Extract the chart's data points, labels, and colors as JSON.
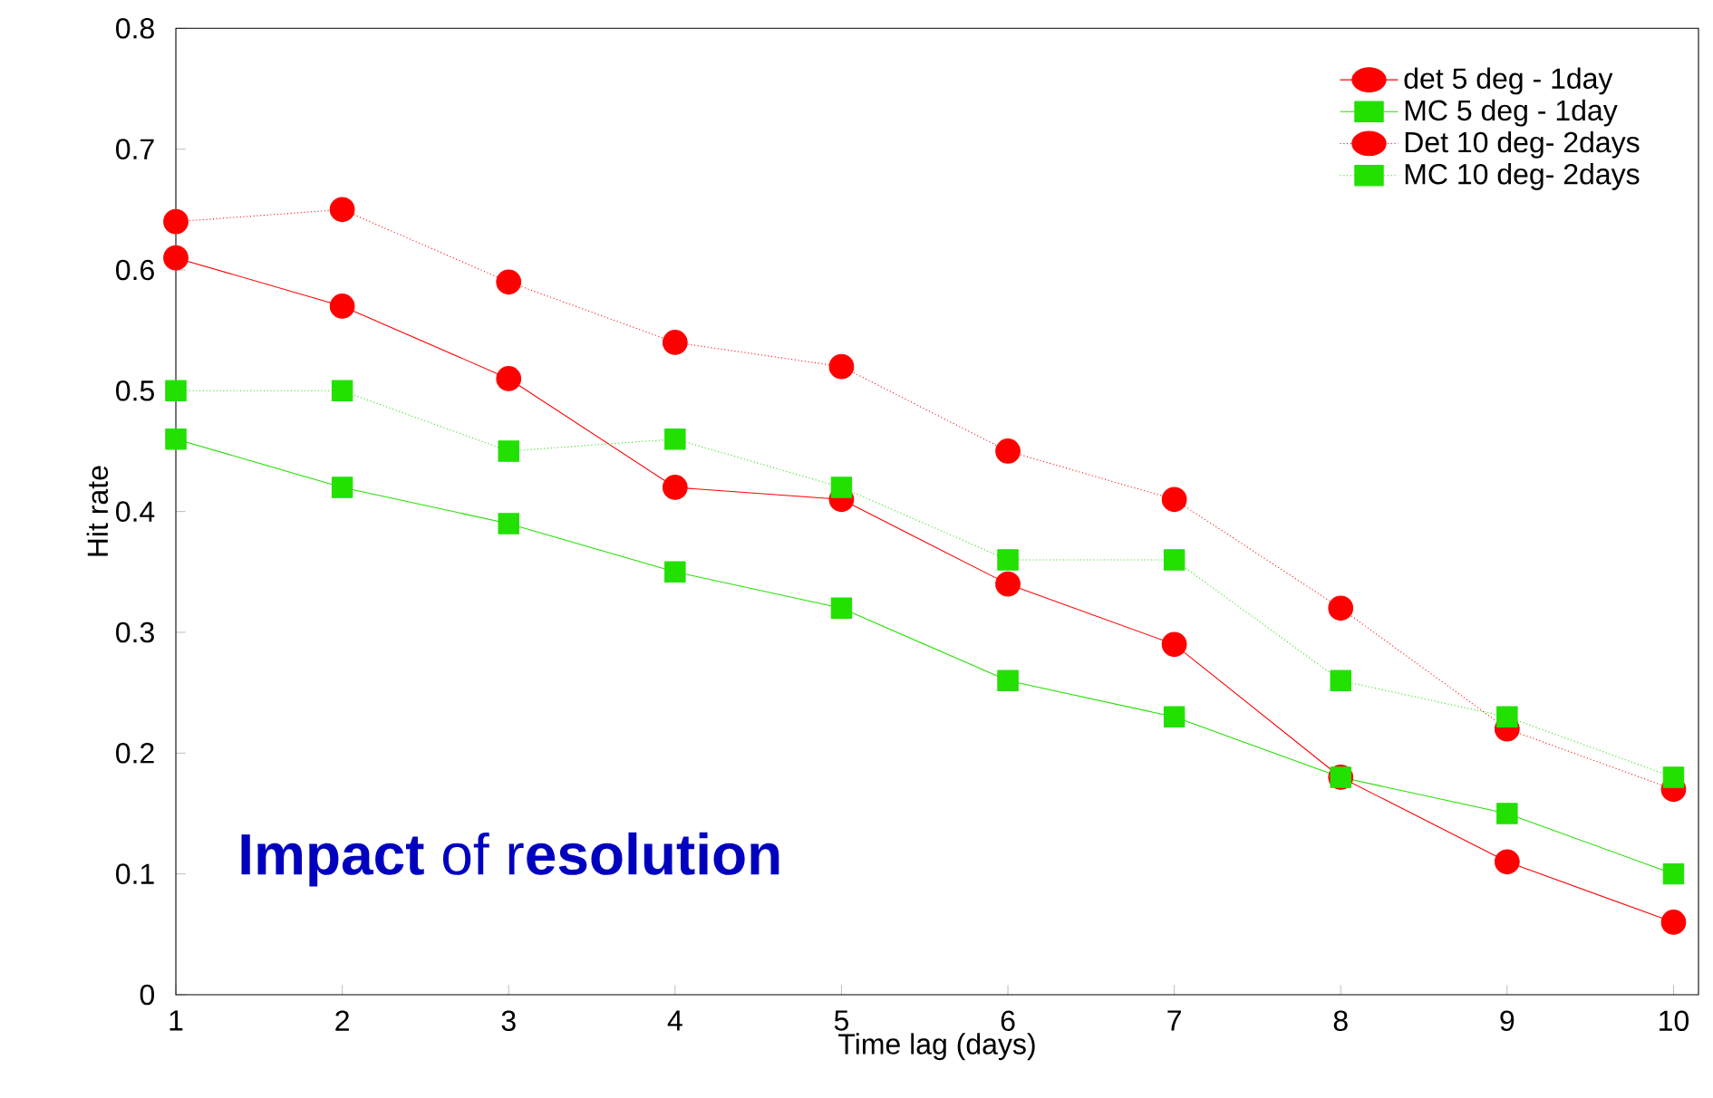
{
  "chart_data": {
    "type": "line",
    "xlabel": "Time lag (days)",
    "ylabel": "Hit rate",
    "x": [
      1,
      2,
      3,
      4,
      5,
      6,
      7,
      8,
      9,
      10
    ],
    "xlim": [
      1,
      10.15
    ],
    "ylim": [
      0,
      0.8
    ],
    "xticks": [
      1,
      2,
      3,
      4,
      5,
      6,
      7,
      8,
      9,
      10
    ],
    "yticks": [
      0,
      0.1,
      0.2,
      0.3,
      0.4,
      0.5,
      0.6,
      0.7,
      0.8
    ],
    "legend": "top right",
    "grid": false,
    "series": [
      {
        "name": "det 5 deg - 1day",
        "color": "#ff0000",
        "marker": "circle",
        "line_style": "solid",
        "values": [
          0.61,
          0.57,
          0.51,
          0.42,
          0.41,
          0.34,
          0.29,
          0.18,
          0.11,
          0.06
        ]
      },
      {
        "name": "MC 5 deg - 1day",
        "color": "#22e000",
        "marker": "square",
        "line_style": "solid",
        "values": [
          0.46,
          0.42,
          0.39,
          0.35,
          0.32,
          0.26,
          0.23,
          0.18,
          0.15,
          0.1
        ]
      },
      {
        "name": "Det 10 deg- 2days",
        "color": "#ff0000",
        "marker": "circle",
        "line_style": "dotted",
        "values": [
          0.64,
          0.65,
          0.59,
          0.54,
          0.52,
          0.45,
          0.41,
          0.32,
          0.22,
          0.17
        ]
      },
      {
        "name": "MC 10 deg- 2days",
        "color": "#22e000",
        "marker": "square",
        "line_style": "dotted",
        "values": [
          0.5,
          0.5,
          0.45,
          0.46,
          0.42,
          0.36,
          0.36,
          0.26,
          0.23,
          0.18
        ]
      }
    ],
    "annotations": [
      "**Impact** of r**esolution**"
    ]
  }
}
